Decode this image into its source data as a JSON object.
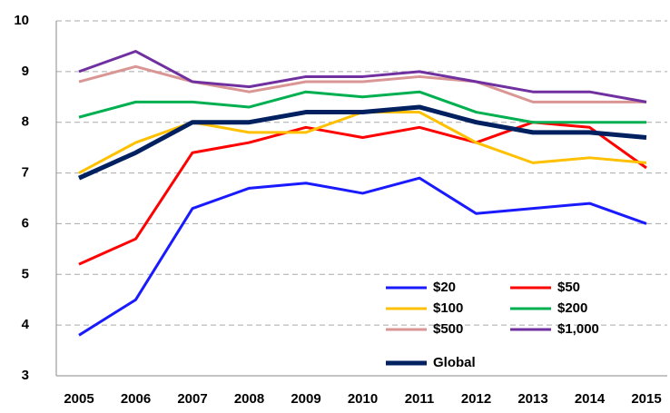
{
  "chart_data": {
    "type": "line",
    "categories": [
      "2005",
      "2006",
      "2007",
      "2008",
      "2009",
      "2010",
      "2011",
      "2012",
      "2013",
      "2014",
      "2015"
    ],
    "series": [
      {
        "name": "$20",
        "color": "#1a1aff",
        "values": [
          3.8,
          4.5,
          6.3,
          6.7,
          6.8,
          6.6,
          6.9,
          6.2,
          6.3,
          6.4,
          6.0
        ]
      },
      {
        "name": "$50",
        "color": "#ff0000",
        "values": [
          5.2,
          5.7,
          7.4,
          7.6,
          7.9,
          7.7,
          7.9,
          7.6,
          8.0,
          7.9,
          7.1
        ]
      },
      {
        "name": "$100",
        "color": "#ffc000",
        "values": [
          7.0,
          7.6,
          8.0,
          7.8,
          7.8,
          8.2,
          8.2,
          7.6,
          7.2,
          7.3,
          7.2
        ]
      },
      {
        "name": "$200",
        "color": "#00b050",
        "values": [
          8.1,
          8.4,
          8.4,
          8.3,
          8.6,
          8.5,
          8.6,
          8.2,
          8.0,
          8.0,
          8.0
        ]
      },
      {
        "name": "$500",
        "color": "#d99694",
        "values": [
          8.8,
          9.1,
          8.8,
          8.6,
          8.8,
          8.8,
          8.9,
          8.8,
          8.4,
          8.4,
          8.4
        ]
      },
      {
        "name": "$1,000",
        "color": "#7030a0",
        "values": [
          9.0,
          9.4,
          8.8,
          8.7,
          8.9,
          8.9,
          9.0,
          8.8,
          8.6,
          8.6,
          8.4
        ]
      },
      {
        "name": "Global",
        "color": "#002060",
        "values": [
          6.9,
          7.4,
          8.0,
          8.0,
          8.2,
          8.2,
          8.3,
          8.0,
          7.8,
          7.8,
          7.7
        ]
      }
    ],
    "ylim": [
      3,
      10
    ],
    "yticks": [
      3,
      4,
      5,
      6,
      7,
      8,
      9,
      10
    ],
    "grid": true,
    "legend": "lower right"
  }
}
